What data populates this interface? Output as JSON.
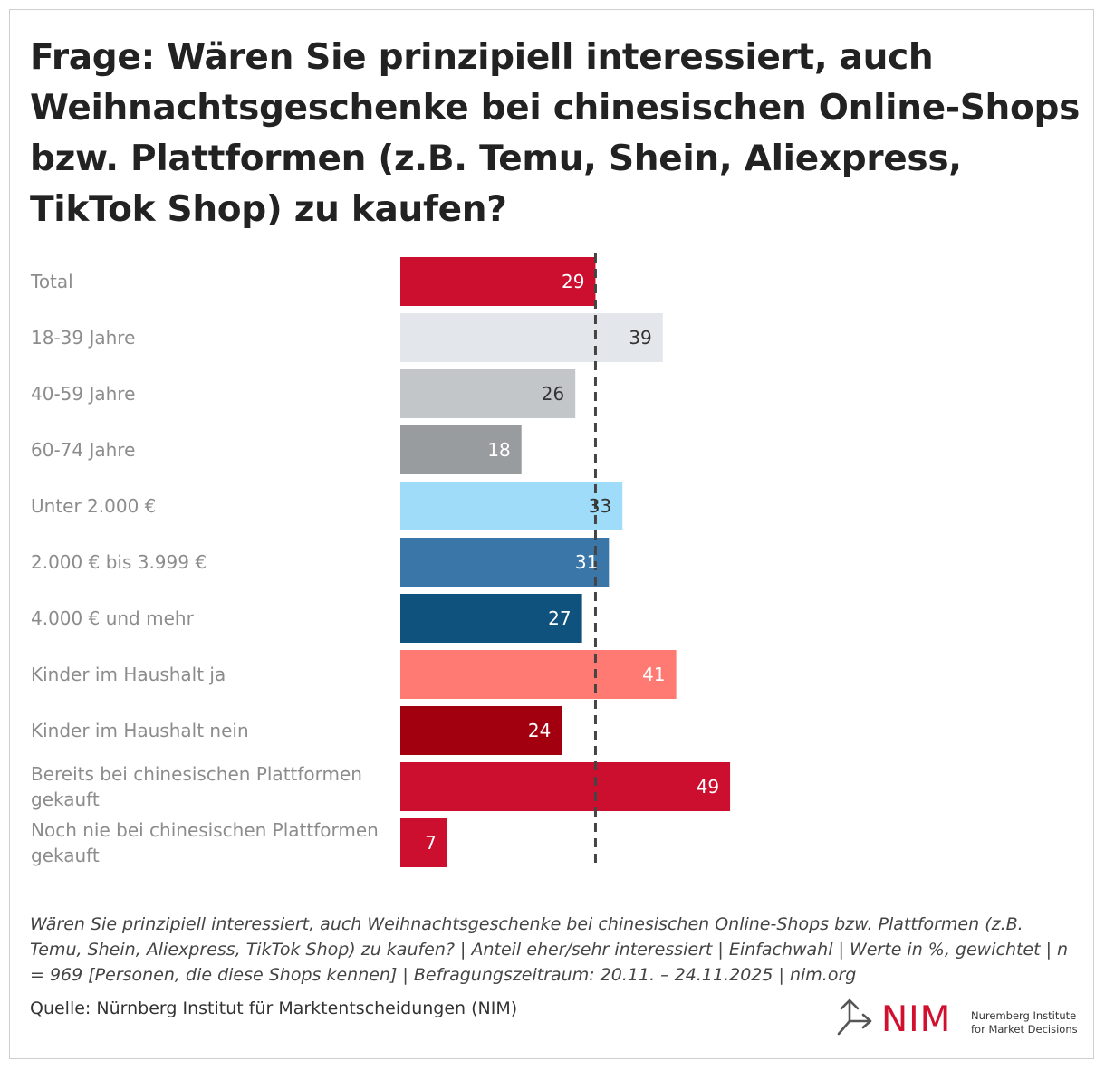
{
  "title": "Frage: Wären Sie prinzipiell interessiert, auch Weihnachtsgeschenke bei chinesischen Online-Shops bzw. Plattformen (z.B. Temu, Shein, Aliexpress, TikTok Shop) zu kaufen?",
  "note": "Wären Sie prinzipiell interessiert, auch Weihnachtsgeschenke bei chinesischen Online-Shops bzw. Plattformen (z.B. Temu, Shein, Aliexpress, TikTok Shop) zu kaufen? | Anteil eher/sehr interessiert | Einfachwahl | Werte in %, gewichtet | n = 969 [Personen, die diese Shops kennen] | Befragungszeitraum: 20.11. – 24.11.2025 | nim.org",
  "source": "Quelle: Nürnberg Institut für Marktentscheidungen (NIM)",
  "logo": {
    "mark": "NIM",
    "line1": "Nuremberg Institute",
    "line2": "for Market Decisions",
    "icon": "arrow-fork-icon",
    "color": "#d0102e"
  },
  "chart_data": {
    "type": "bar",
    "orientation": "horizontal",
    "categories": [
      [
        "Total"
      ],
      [
        "18-39 Jahre"
      ],
      [
        "40-59 Jahre"
      ],
      [
        "60-74 Jahre"
      ],
      [
        "Unter 2.000 €"
      ],
      [
        "2.000 € bis 3.999 €"
      ],
      [
        "4.000 € und mehr"
      ],
      [
        "Kinder im Haushalt ja"
      ],
      [
        "Kinder im Haushalt nein"
      ],
      [
        "Bereits bei chinesischen Plattformen",
        "gekauft"
      ],
      [
        "Noch nie bei chinesischen Plattformen",
        "gekauft"
      ]
    ],
    "values": [
      29,
      39,
      26,
      18,
      33,
      31,
      27,
      41,
      24,
      49,
      7
    ],
    "colors": [
      "#cc0f2f",
      "#e3e6ea",
      "#c3c6c9",
      "#999c9f",
      "#9edcfa",
      "#3a77a8",
      "#0f527d",
      "#ff7a72",
      "#a3000f",
      "#cc0f2f",
      "#cc0f2f"
    ],
    "label_colors": [
      "#ffffff",
      "#333333",
      "#333333",
      "#ffffff",
      "#333333",
      "#ffffff",
      "#ffffff",
      "#ffffff",
      "#ffffff",
      "#ffffff",
      "#ffffff"
    ],
    "reference_line": 29,
    "xlim": [
      0,
      50
    ],
    "grid": false,
    "legend": "none"
  }
}
